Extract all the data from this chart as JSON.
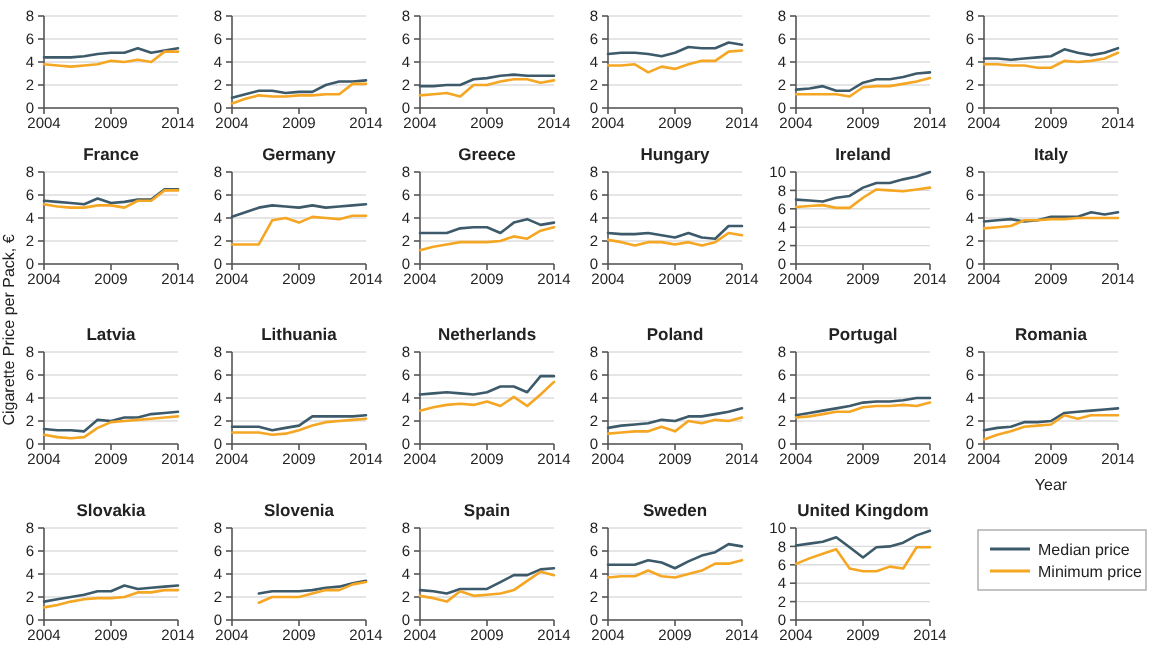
{
  "chart_data": [
    {
      "type": "line",
      "x": [
        2004,
        2005,
        2006,
        2007,
        2008,
        2009,
        2010,
        2011,
        2012,
        2013,
        2014
      ],
      "xlim": [
        2004,
        2014
      ],
      "xticks": [
        2004,
        2009,
        2014
      ],
      "ylim": [
        0,
        8
      ],
      "yticks": [
        0,
        2,
        4,
        6,
        8
      ],
      "grid": "y",
      "series": [
        {
          "color": "#3d5a6b",
          "values": [
            4.4,
            4.4,
            4.4,
            4.5,
            4.7,
            4.8,
            4.8,
            5.2,
            4.8,
            5.0,
            5.2
          ]
        },
        {
          "color": "#f5a623",
          "values": [
            3.8,
            3.7,
            3.6,
            3.7,
            3.8,
            4.1,
            4.0,
            4.2,
            4.0,
            4.9,
            4.9
          ]
        }
      ]
    },
    {
      "type": "line",
      "x": [
        2004,
        2005,
        2006,
        2007,
        2008,
        2009,
        2010,
        2011,
        2012,
        2013,
        2014
      ],
      "xlim": [
        2004,
        2014
      ],
      "xticks": [
        2004,
        2009,
        2014
      ],
      "ylim": [
        0,
        8
      ],
      "yticks": [
        0,
        2,
        4,
        6,
        8
      ],
      "grid": "y",
      "series": [
        {
          "color": "#3d5a6b",
          "values": [
            0.9,
            1.2,
            1.5,
            1.5,
            1.3,
            1.4,
            1.4,
            2.0,
            2.3,
            2.3,
            2.4
          ]
        },
        {
          "color": "#f5a623",
          "values": [
            0.4,
            0.8,
            1.1,
            1.0,
            1.0,
            1.1,
            1.1,
            1.2,
            1.2,
            2.1,
            2.1
          ]
        }
      ]
    },
    {
      "type": "line",
      "x": [
        2004,
        2005,
        2006,
        2007,
        2008,
        2009,
        2010,
        2011,
        2012,
        2013,
        2014
      ],
      "xlim": [
        2004,
        2014
      ],
      "xticks": [
        2004,
        2009,
        2014
      ],
      "ylim": [
        0,
        8
      ],
      "yticks": [
        0,
        2,
        4,
        6,
        8
      ],
      "grid": "y",
      "series": [
        {
          "color": "#3d5a6b",
          "values": [
            1.9,
            1.9,
            2.0,
            2.0,
            2.5,
            2.6,
            2.8,
            2.9,
            2.8,
            2.8,
            2.8
          ]
        },
        {
          "color": "#f5a623",
          "values": [
            1.1,
            1.2,
            1.3,
            1.0,
            2.0,
            2.0,
            2.3,
            2.5,
            2.5,
            2.2,
            2.4
          ]
        }
      ]
    },
    {
      "type": "line",
      "x": [
        2004,
        2005,
        2006,
        2007,
        2008,
        2009,
        2010,
        2011,
        2012,
        2013,
        2014
      ],
      "xlim": [
        2004,
        2014
      ],
      "xticks": [
        2004,
        2009,
        2014
      ],
      "ylim": [
        0,
        8
      ],
      "yticks": [
        0,
        2,
        4,
        6,
        8
      ],
      "grid": "y",
      "series": [
        {
          "color": "#3d5a6b",
          "values": [
            4.7,
            4.8,
            4.8,
            4.7,
            4.5,
            4.8,
            5.3,
            5.2,
            5.2,
            5.7,
            5.5
          ]
        },
        {
          "color": "#f5a623",
          "values": [
            3.7,
            3.7,
            3.8,
            3.1,
            3.6,
            3.4,
            3.8,
            4.1,
            4.1,
            4.9,
            5.0
          ]
        }
      ]
    },
    {
      "type": "line",
      "x": [
        2004,
        2005,
        2006,
        2007,
        2008,
        2009,
        2010,
        2011,
        2012,
        2013,
        2014
      ],
      "xlim": [
        2004,
        2014
      ],
      "xticks": [
        2004,
        2009,
        2014
      ],
      "ylim": [
        0,
        8
      ],
      "yticks": [
        0,
        2,
        4,
        6,
        8
      ],
      "grid": "y",
      "series": [
        {
          "color": "#3d5a6b",
          "values": [
            1.6,
            1.7,
            1.9,
            1.5,
            1.5,
            2.2,
            2.5,
            2.5,
            2.7,
            3.0,
            3.1
          ]
        },
        {
          "color": "#f5a623",
          "values": [
            1.2,
            1.2,
            1.2,
            1.2,
            1.0,
            1.8,
            1.9,
            1.9,
            2.1,
            2.3,
            2.6
          ]
        }
      ]
    },
    {
      "type": "line",
      "x": [
        2004,
        2005,
        2006,
        2007,
        2008,
        2009,
        2010,
        2011,
        2012,
        2013,
        2014
      ],
      "xlim": [
        2004,
        2014
      ],
      "xticks": [
        2004,
        2009,
        2014
      ],
      "ylim": [
        0,
        8
      ],
      "yticks": [
        0,
        2,
        4,
        6,
        8
      ],
      "grid": "y",
      "series": [
        {
          "color": "#3d5a6b",
          "values": [
            4.3,
            4.3,
            4.2,
            4.3,
            4.4,
            4.5,
            5.1,
            4.8,
            4.6,
            4.8,
            5.2
          ]
        },
        {
          "color": "#f5a623",
          "values": [
            3.8,
            3.8,
            3.7,
            3.7,
            3.5,
            3.5,
            4.1,
            4.0,
            4.1,
            4.3,
            4.8
          ]
        }
      ]
    },
    {
      "type": "line",
      "title": "France",
      "x": [
        2004,
        2005,
        2006,
        2007,
        2008,
        2009,
        2010,
        2011,
        2012,
        2013,
        2014
      ],
      "xlim": [
        2004,
        2014
      ],
      "xticks": [
        2004,
        2009,
        2014
      ],
      "ylim": [
        0,
        8
      ],
      "yticks": [
        0,
        2,
        4,
        6,
        8
      ],
      "grid": "y",
      "series": [
        {
          "color": "#3d5a6b",
          "values": [
            5.5,
            5.4,
            5.3,
            5.2,
            5.7,
            5.3,
            5.4,
            5.6,
            5.6,
            6.5,
            6.5
          ]
        },
        {
          "color": "#f5a623",
          "values": [
            5.2,
            5.0,
            4.9,
            4.9,
            5.1,
            5.1,
            4.9,
            5.5,
            5.5,
            6.4,
            6.4
          ]
        }
      ]
    },
    {
      "type": "line",
      "title": "Germany",
      "x": [
        2004,
        2005,
        2006,
        2007,
        2008,
        2009,
        2010,
        2011,
        2012,
        2013,
        2014
      ],
      "xlim": [
        2004,
        2014
      ],
      "xticks": [
        2004,
        2009,
        2014
      ],
      "ylim": [
        0,
        8
      ],
      "yticks": [
        0,
        2,
        4,
        6,
        8
      ],
      "grid": "y",
      "series": [
        {
          "color": "#3d5a6b",
          "values": [
            4.1,
            4.5,
            4.9,
            5.1,
            5.0,
            4.9,
            5.1,
            4.9,
            5.0,
            5.1,
            5.2
          ]
        },
        {
          "color": "#f5a623",
          "values": [
            1.7,
            1.7,
            1.7,
            3.8,
            4.0,
            3.6,
            4.1,
            4.0,
            3.9,
            4.2,
            4.2
          ]
        }
      ]
    },
    {
      "type": "line",
      "title": "Greece",
      "x": [
        2004,
        2005,
        2006,
        2007,
        2008,
        2009,
        2010,
        2011,
        2012,
        2013,
        2014
      ],
      "xlim": [
        2004,
        2014
      ],
      "xticks": [
        2004,
        2009,
        2014
      ],
      "ylim": [
        0,
        8
      ],
      "yticks": [
        0,
        2,
        4,
        6,
        8
      ],
      "grid": "y",
      "series": [
        {
          "color": "#3d5a6b",
          "values": [
            2.7,
            2.7,
            2.7,
            3.1,
            3.2,
            3.2,
            2.7,
            3.6,
            3.9,
            3.4,
            3.6
          ]
        },
        {
          "color": "#f5a623",
          "values": [
            1.2,
            1.5,
            1.7,
            1.9,
            1.9,
            1.9,
            2.0,
            2.4,
            2.2,
            2.9,
            3.2
          ]
        }
      ]
    },
    {
      "type": "line",
      "title": "Hungary",
      "x": [
        2004,
        2005,
        2006,
        2007,
        2008,
        2009,
        2010,
        2011,
        2012,
        2013,
        2014
      ],
      "xlim": [
        2004,
        2014
      ],
      "xticks": [
        2004,
        2009,
        2014
      ],
      "ylim": [
        0,
        8
      ],
      "yticks": [
        0,
        2,
        4,
        6,
        8
      ],
      "grid": "y",
      "series": [
        {
          "color": "#3d5a6b",
          "values": [
            2.7,
            2.6,
            2.6,
            2.7,
            2.5,
            2.3,
            2.7,
            2.3,
            2.2,
            3.3,
            3.3
          ]
        },
        {
          "color": "#f5a623",
          "values": [
            2.1,
            1.9,
            1.6,
            1.9,
            1.9,
            1.7,
            1.9,
            1.6,
            1.9,
            2.7,
            2.5
          ]
        }
      ]
    },
    {
      "type": "line",
      "title": "Ireland",
      "x": [
        2004,
        2005,
        2006,
        2007,
        2008,
        2009,
        2010,
        2011,
        2012,
        2013,
        2014
      ],
      "xlim": [
        2004,
        2014
      ],
      "xticks": [
        2004,
        2009,
        2014
      ],
      "ylim": [
        0,
        10
      ],
      "yticks": [
        0,
        2,
        4,
        6,
        8,
        10
      ],
      "grid": "y",
      "series": [
        {
          "color": "#3d5a6b",
          "values": [
            7.0,
            6.9,
            6.8,
            7.2,
            7.4,
            8.3,
            8.8,
            8.8,
            9.2,
            9.5,
            10.0
          ]
        },
        {
          "color": "#f5a623",
          "values": [
            6.2,
            6.3,
            6.4,
            6.1,
            6.1,
            7.2,
            8.1,
            8.0,
            7.9,
            8.1,
            8.3
          ]
        }
      ]
    },
    {
      "type": "line",
      "title": "Italy",
      "x": [
        2004,
        2005,
        2006,
        2007,
        2008,
        2009,
        2010,
        2011,
        2012,
        2013,
        2014
      ],
      "xlim": [
        2004,
        2014
      ],
      "xticks": [
        2004,
        2009,
        2014
      ],
      "ylim": [
        0,
        8
      ],
      "yticks": [
        0,
        2,
        4,
        6,
        8
      ],
      "grid": "y",
      "series": [
        {
          "color": "#3d5a6b",
          "values": [
            3.7,
            3.8,
            3.9,
            3.7,
            3.8,
            4.1,
            4.1,
            4.1,
            4.5,
            4.3,
            4.5
          ]
        },
        {
          "color": "#f5a623",
          "values": [
            3.1,
            3.2,
            3.3,
            3.8,
            3.8,
            3.9,
            3.9,
            4.0,
            4.0,
            4.0,
            4.0
          ]
        }
      ]
    },
    {
      "type": "line",
      "title": "Latvia",
      "ylabel": "Cigarette Price per Pack, €",
      "x": [
        2004,
        2005,
        2006,
        2007,
        2008,
        2009,
        2010,
        2011,
        2012,
        2013,
        2014
      ],
      "xlim": [
        2004,
        2014
      ],
      "xticks": [
        2004,
        2009,
        2014
      ],
      "ylim": [
        0,
        8
      ],
      "yticks": [
        0,
        2,
        4,
        6,
        8
      ],
      "grid": "y",
      "series": [
        {
          "color": "#3d5a6b",
          "values": [
            1.3,
            1.2,
            1.2,
            1.1,
            2.1,
            2.0,
            2.3,
            2.3,
            2.6,
            2.7,
            2.8
          ]
        },
        {
          "color": "#f5a623",
          "values": [
            0.8,
            0.6,
            0.5,
            0.6,
            1.4,
            1.9,
            2.0,
            2.1,
            2.2,
            2.3,
            2.4
          ]
        }
      ]
    },
    {
      "type": "line",
      "title": "Lithuania",
      "x": [
        2004,
        2005,
        2006,
        2007,
        2008,
        2009,
        2010,
        2011,
        2012,
        2013,
        2014
      ],
      "xlim": [
        2004,
        2014
      ],
      "xticks": [
        2004,
        2009,
        2014
      ],
      "ylim": [
        0,
        8
      ],
      "yticks": [
        0,
        2,
        4,
        6,
        8
      ],
      "grid": "y",
      "series": [
        {
          "color": "#3d5a6b",
          "values": [
            1.5,
            1.5,
            1.5,
            1.2,
            1.4,
            1.6,
            2.4,
            2.4,
            2.4,
            2.4,
            2.5
          ]
        },
        {
          "color": "#f5a623",
          "values": [
            1.0,
            1.0,
            1.0,
            0.8,
            0.9,
            1.2,
            1.6,
            1.9,
            2.0,
            2.1,
            2.2
          ]
        }
      ]
    },
    {
      "type": "line",
      "title": "Netherlands",
      "x": [
        2004,
        2005,
        2006,
        2007,
        2008,
        2009,
        2010,
        2011,
        2012,
        2013,
        2014
      ],
      "xlim": [
        2004,
        2014
      ],
      "xticks": [
        2004,
        2009,
        2014
      ],
      "ylim": [
        0,
        8
      ],
      "yticks": [
        0,
        2,
        4,
        6,
        8
      ],
      "grid": "y",
      "series": [
        {
          "color": "#3d5a6b",
          "values": [
            4.3,
            4.4,
            4.5,
            4.4,
            4.3,
            4.5,
            5.0,
            5.0,
            4.5,
            5.9,
            5.9
          ]
        },
        {
          "color": "#f5a623",
          "values": [
            2.9,
            3.2,
            3.4,
            3.5,
            3.4,
            3.7,
            3.3,
            4.1,
            3.3,
            4.3,
            5.4
          ]
        }
      ]
    },
    {
      "type": "line",
      "title": "Poland",
      "x": [
        2004,
        2005,
        2006,
        2007,
        2008,
        2009,
        2010,
        2011,
        2012,
        2013,
        2014
      ],
      "xlim": [
        2004,
        2014
      ],
      "xticks": [
        2004,
        2009,
        2014
      ],
      "ylim": [
        0,
        8
      ],
      "yticks": [
        0,
        2,
        4,
        6,
        8
      ],
      "grid": "y",
      "series": [
        {
          "color": "#3d5a6b",
          "values": [
            1.4,
            1.6,
            1.7,
            1.8,
            2.1,
            2.0,
            2.4,
            2.4,
            2.6,
            2.8,
            3.1
          ]
        },
        {
          "color": "#f5a623",
          "values": [
            0.9,
            1.0,
            1.1,
            1.1,
            1.5,
            1.1,
            2.0,
            1.8,
            2.1,
            2.0,
            2.3
          ]
        }
      ]
    },
    {
      "type": "line",
      "title": "Portugal",
      "x": [
        2004,
        2005,
        2006,
        2007,
        2008,
        2009,
        2010,
        2011,
        2012,
        2013,
        2014
      ],
      "xlim": [
        2004,
        2014
      ],
      "xticks": [
        2004,
        2009,
        2014
      ],
      "ylim": [
        0,
        8
      ],
      "yticks": [
        0,
        2,
        4,
        6,
        8
      ],
      "grid": "y",
      "series": [
        {
          "color": "#3d5a6b",
          "values": [
            2.5,
            2.7,
            2.9,
            3.1,
            3.3,
            3.6,
            3.7,
            3.7,
            3.8,
            4.0,
            4.0
          ]
        },
        {
          "color": "#f5a623",
          "values": [
            2.3,
            2.4,
            2.6,
            2.8,
            2.8,
            3.2,
            3.3,
            3.3,
            3.4,
            3.3,
            3.6
          ]
        }
      ]
    },
    {
      "type": "line",
      "title": "Romania",
      "xlabel": "Year",
      "x": [
        2004,
        2005,
        2006,
        2007,
        2008,
        2009,
        2010,
        2011,
        2012,
        2013,
        2014
      ],
      "xlim": [
        2004,
        2014
      ],
      "xticks": [
        2004,
        2009,
        2014
      ],
      "ylim": [
        0,
        8
      ],
      "yticks": [
        0,
        2,
        4,
        6,
        8
      ],
      "grid": "y",
      "series": [
        {
          "color": "#3d5a6b",
          "values": [
            1.2,
            1.4,
            1.5,
            1.9,
            1.9,
            2.0,
            2.7,
            2.8,
            2.9,
            3.0,
            3.1
          ]
        },
        {
          "color": "#f5a623",
          "values": [
            0.4,
            0.8,
            1.1,
            1.5,
            1.6,
            1.7,
            2.5,
            2.2,
            2.5,
            2.5,
            2.5
          ]
        }
      ]
    },
    {
      "type": "line",
      "title": "Slovakia",
      "x": [
        2004,
        2005,
        2006,
        2007,
        2008,
        2009,
        2010,
        2011,
        2012,
        2013,
        2014
      ],
      "xlim": [
        2004,
        2014
      ],
      "xticks": [
        2004,
        2009,
        2014
      ],
      "ylim": [
        0,
        8
      ],
      "yticks": [
        0,
        2,
        4,
        6,
        8
      ],
      "grid": "y",
      "series": [
        {
          "color": "#3d5a6b",
          "values": [
            1.6,
            1.8,
            2.0,
            2.2,
            2.5,
            2.5,
            3.0,
            2.7,
            2.8,
            2.9,
            3.0
          ]
        },
        {
          "color": "#f5a623",
          "values": [
            1.1,
            1.3,
            1.6,
            1.8,
            1.9,
            1.9,
            2.0,
            2.4,
            2.4,
            2.6,
            2.6
          ]
        }
      ]
    },
    {
      "type": "line",
      "title": "Slovenia",
      "x": [
        2006,
        2007,
        2008,
        2009,
        2010,
        2011,
        2012,
        2013,
        2014
      ],
      "xlim": [
        2004,
        2014
      ],
      "xticks": [
        2004,
        2009,
        2014
      ],
      "ylim": [
        0,
        8
      ],
      "yticks": [
        0,
        2,
        4,
        6,
        8
      ],
      "grid": "y",
      "series": [
        {
          "color": "#3d5a6b",
          "values": [
            2.3,
            2.5,
            2.5,
            2.5,
            2.6,
            2.8,
            2.9,
            3.2,
            3.4
          ]
        },
        {
          "color": "#f5a623",
          "values": [
            1.5,
            2.0,
            2.0,
            2.0,
            2.3,
            2.6,
            2.6,
            3.1,
            3.3
          ]
        }
      ]
    },
    {
      "type": "line",
      "title": "Spain",
      "x": [
        2004,
        2005,
        2006,
        2007,
        2008,
        2009,
        2010,
        2011,
        2012,
        2013,
        2014
      ],
      "xlim": [
        2004,
        2014
      ],
      "xticks": [
        2004,
        2009,
        2014
      ],
      "ylim": [
        0,
        8
      ],
      "yticks": [
        0,
        2,
        4,
        6,
        8
      ],
      "grid": "y",
      "series": [
        {
          "color": "#3d5a6b",
          "values": [
            2.6,
            2.5,
            2.3,
            2.7,
            2.7,
            2.7,
            3.3,
            3.9,
            3.9,
            4.4,
            4.5
          ]
        },
        {
          "color": "#f5a623",
          "values": [
            2.1,
            1.9,
            1.6,
            2.5,
            2.1,
            2.2,
            2.3,
            2.6,
            3.4,
            4.2,
            3.9
          ]
        }
      ]
    },
    {
      "type": "line",
      "title": "Sweden",
      "x": [
        2004,
        2005,
        2006,
        2007,
        2008,
        2009,
        2010,
        2011,
        2012,
        2013,
        2014
      ],
      "xlim": [
        2004,
        2014
      ],
      "xticks": [
        2004,
        2009,
        2014
      ],
      "ylim": [
        0,
        8
      ],
      "yticks": [
        0,
        2,
        4,
        6,
        8
      ],
      "grid": "y",
      "series": [
        {
          "color": "#3d5a6b",
          "values": [
            4.8,
            4.8,
            4.8,
            5.2,
            5.0,
            4.5,
            5.1,
            5.6,
            5.9,
            6.6,
            6.4
          ]
        },
        {
          "color": "#f5a623",
          "values": [
            3.7,
            3.8,
            3.8,
            4.3,
            3.8,
            3.7,
            4.0,
            4.3,
            4.9,
            4.9,
            5.2
          ]
        }
      ]
    },
    {
      "type": "line",
      "title": "United Kingdom",
      "legend": "right",
      "x": [
        2004,
        2005,
        2006,
        2007,
        2008,
        2009,
        2010,
        2011,
        2012,
        2013,
        2014
      ],
      "xlim": [
        2004,
        2014
      ],
      "xticks": [
        2004,
        2009,
        2014
      ],
      "ylim": [
        0,
        10
      ],
      "yticks": [
        0,
        2,
        4,
        6,
        8,
        10
      ],
      "grid": "y",
      "series": [
        {
          "name": "Median price",
          "color": "#3d5a6b",
          "values": [
            8.1,
            8.3,
            8.5,
            9.0,
            7.9,
            6.8,
            7.9,
            8.0,
            8.4,
            9.2,
            9.7
          ]
        },
        {
          "name": "Minimum price",
          "color": "#f5a623",
          "values": [
            6.1,
            6.7,
            7.2,
            7.7,
            5.6,
            5.3,
            5.3,
            5.8,
            5.6,
            7.9,
            7.9
          ]
        }
      ]
    }
  ]
}
